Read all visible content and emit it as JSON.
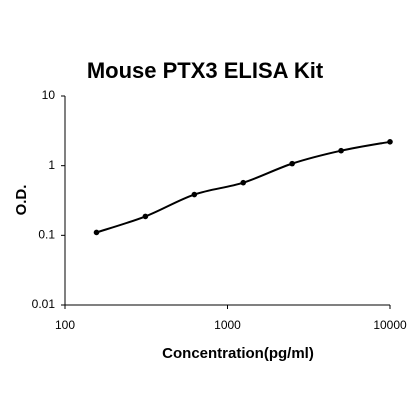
{
  "chart_data": {
    "type": "scatter",
    "title": "Mouse PTX3 ELISA Kit",
    "x_label": "Concentration(pg/ml)",
    "y_label": "O.D.",
    "x": [
      156.25,
      312.5,
      625,
      1250,
      2500,
      5000,
      10000
    ],
    "series": [
      {
        "color": "#000000",
        "values": [
          0.11,
          0.187,
          0.385,
          0.57,
          1.07,
          1.64,
          2.2
        ]
      }
    ],
    "xlim": [
      100,
      10000
    ],
    "ylim": [
      0.01,
      10
    ],
    "xticks": [
      100,
      1000,
      10000
    ],
    "yticks": [
      0.01,
      0.1,
      1,
      10
    ],
    "x_log": true,
    "y_log": true,
    "grid": false,
    "line": true
  }
}
